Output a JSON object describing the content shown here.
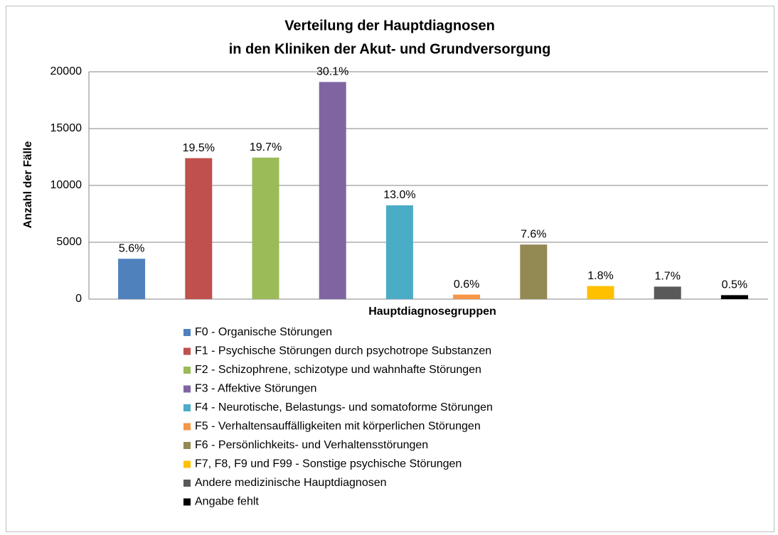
{
  "chart_data": {
    "type": "bar",
    "title": [
      "Verteilung der Hauptdiagnosen",
      "in den Kliniken der Akut- und Grundversorgung"
    ],
    "x_label": "Hauptdiagnosegruppen",
    "y_label": "Anzahl der Fälle",
    "ylim": [
      0,
      20000
    ],
    "yticks": [
      0,
      5000,
      10000,
      15000,
      20000
    ],
    "grid": true,
    "legend": "bottom",
    "series": [
      {
        "name": "F0 - Organische Störungen",
        "color": "#4f81bd",
        "values": [
          3550
        ],
        "share_label": "5.6%"
      },
      {
        "name": "F1 - Psychische Störungen durch psychotrope Substanzen",
        "color": "#c0504d",
        "values": [
          12400
        ],
        "share_label": "19.5%"
      },
      {
        "name": "F2 - Schizophrene, schizotype und wahnhafte Störungen",
        "color": "#9bbb59",
        "values": [
          12450
        ],
        "share_label": "19.7%"
      },
      {
        "name": "F3 - Affektive Störungen",
        "color": "#8064a2",
        "values": [
          19100
        ],
        "share_label": "30.1%"
      },
      {
        "name": "F4 - Neurotische, Belastungs- und somatoforme Störungen",
        "color": "#4bacc6",
        "values": [
          8250
        ],
        "share_label": "13.0%"
      },
      {
        "name": "F5 - Verhaltensauffälligkeiten mit körperlichen Störungen",
        "color": "#f79646",
        "values": [
          400
        ],
        "share_label": "0.6%"
      },
      {
        "name": "F6 - Persönlichkeits- und Verhaltensstörungen",
        "color": "#938953",
        "values": [
          4800
        ],
        "share_label": "7.6%"
      },
      {
        "name": "F7, F8, F9 und F99 - Sonstige psychische Störungen",
        "color": "#ffc000",
        "values": [
          1150
        ],
        "share_label": "1.8%"
      },
      {
        "name": "Andere medizinische Hauptdiagnosen",
        "color": "#595959",
        "values": [
          1100
        ],
        "share_label": "1.7%"
      },
      {
        "name": "Angabe fehlt",
        "color": "#000000",
        "values": [
          350
        ],
        "share_label": "0.5%"
      }
    ]
  }
}
